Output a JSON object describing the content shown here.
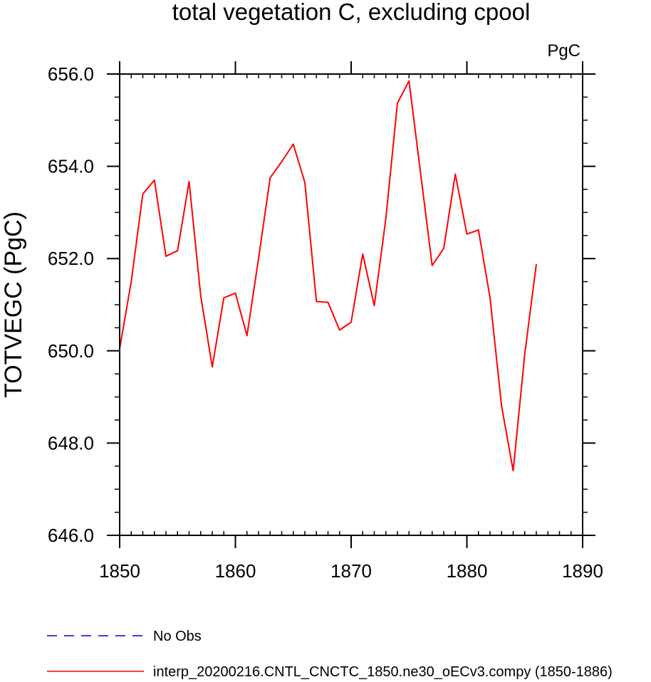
{
  "chart_data": {
    "type": "line",
    "title": "total vegetation C, excluding cpool",
    "units": "PgC",
    "xlabel": "",
    "ylabel": "TOTVEGC  (PgC)",
    "xlim": [
      1850,
      1890
    ],
    "ylim": [
      646.0,
      656.0
    ],
    "xticks": [
      1850,
      1860,
      1870,
      1880,
      1890
    ],
    "xtick_labels": [
      "1850",
      "1860",
      "1870",
      "1880",
      "1890"
    ],
    "yticks": [
      646.0,
      648.0,
      650.0,
      652.0,
      654.0,
      656.0
    ],
    "ytick_labels": [
      "646.0",
      "648.0",
      "650.0",
      "652.0",
      "654.0",
      "656.0"
    ],
    "x_minor_step": 1,
    "y_minor_step": 0.5,
    "grid": false,
    "legend_position": "bottom",
    "series": [
      {
        "name": "interp_20200216.CNTL_CNCTC_1850.ne30_oECv3.compy (1850-1886)",
        "color": "#ff0000",
        "dash": "solid",
        "x": [
          1850,
          1851,
          1852,
          1853,
          1854,
          1855,
          1856,
          1857,
          1858,
          1859,
          1860,
          1861,
          1862,
          1863,
          1864,
          1865,
          1866,
          1867,
          1868,
          1869,
          1870,
          1871,
          1872,
          1873,
          1874,
          1875,
          1876,
          1877,
          1878,
          1879,
          1880,
          1881,
          1882,
          1883,
          1884,
          1885,
          1886
        ],
        "y": [
          650.05,
          651.5,
          653.4,
          653.7,
          652.05,
          652.17,
          653.67,
          651.2,
          649.65,
          651.15,
          651.25,
          650.33,
          652.0,
          653.75,
          654.1,
          654.48,
          653.65,
          651.07,
          651.05,
          650.45,
          650.62,
          652.1,
          650.98,
          652.87,
          655.37,
          655.85,
          653.85,
          651.85,
          652.22,
          653.83,
          652.53,
          652.62,
          651.15,
          648.8,
          647.4,
          649.93,
          651.88
        ]
      }
    ],
    "legend": [
      {
        "label": "No Obs",
        "color": "#0000cc",
        "dash": "dashed"
      },
      {
        "label": "interp_20200216.CNTL_CNCTC_1850.ne30_oECv3.compy (1850-1886)",
        "color": "#ff0000",
        "dash": "solid"
      }
    ]
  }
}
